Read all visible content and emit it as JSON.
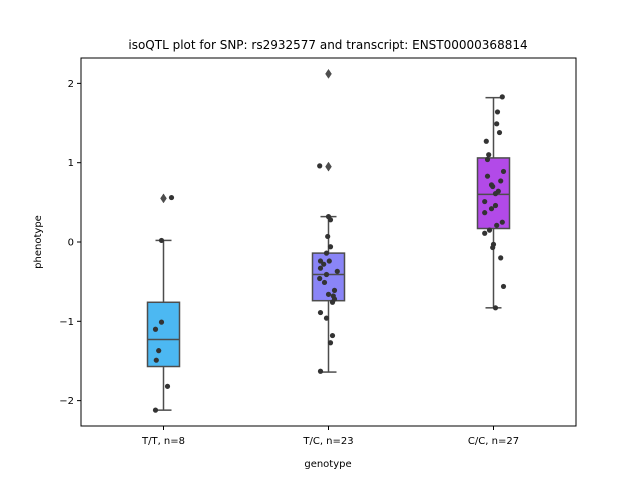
{
  "chart_data": {
    "type": "box",
    "title": "isoQTL plot for SNP: rs2932577 and transcript: ENST00000368814",
    "xlabel": "genotype",
    "ylabel": "phenotype",
    "ylim": [
      -2.32,
      2.32
    ],
    "yticks": [
      2,
      1,
      0,
      -1,
      -2
    ],
    "ytick_labels": [
      "2",
      "1",
      "0",
      "−1",
      "−2"
    ],
    "categories": [
      "T/T, n=8",
      "T/C, n=23",
      "C/C, n=27"
    ],
    "colors": [
      "#4cb8f2",
      "#8a85f7",
      "#b24ae8"
    ],
    "boxes": [
      {
        "q1": -1.57,
        "median": -1.23,
        "q3": -0.76,
        "whisker_low": -2.12,
        "whisker_high": 0.02,
        "outliers": [
          0.55
        ]
      },
      {
        "q1": -0.74,
        "median": -0.41,
        "q3": -0.14,
        "whisker_low": -1.64,
        "whisker_high": 0.32,
        "outliers": [
          0.95,
          2.12
        ]
      },
      {
        "q1": 0.17,
        "median": 0.6,
        "q3": 1.06,
        "whisker_low": -0.83,
        "whisker_high": 1.82,
        "outliers": []
      }
    ],
    "points": [
      [
        [
          -0.05,
          0.02
        ],
        [
          0.2,
          0.56
        ],
        [
          -0.2,
          -1.1
        ],
        [
          -0.05,
          -1.01
        ],
        [
          -0.12,
          -1.37
        ],
        [
          -0.18,
          -1.49
        ],
        [
          0.1,
          -1.82
        ],
        [
          -0.2,
          -2.12
        ]
      ],
      [
        [
          -0.22,
          0.96
        ],
        [
          0.0,
          0.32
        ],
        [
          0.05,
          0.28
        ],
        [
          -0.02,
          0.07
        ],
        [
          0.05,
          -0.06
        ],
        [
          -0.05,
          -0.14
        ],
        [
          -0.2,
          -0.24
        ],
        [
          0.02,
          -0.24
        ],
        [
          -0.12,
          -0.28
        ],
        [
          -0.2,
          -0.33
        ],
        [
          0.22,
          -0.37
        ],
        [
          -0.05,
          -0.41
        ],
        [
          -0.22,
          -0.46
        ],
        [
          -0.1,
          -0.51
        ],
        [
          0.15,
          -0.61
        ],
        [
          0.0,
          -0.66
        ],
        [
          0.12,
          -0.68
        ],
        [
          0.15,
          -0.72
        ],
        [
          0.1,
          -0.76
        ],
        [
          -0.2,
          -0.89
        ],
        [
          -0.05,
          -0.96
        ],
        [
          0.1,
          -1.18
        ],
        [
          0.05,
          -1.27
        ],
        [
          -0.2,
          -1.63
        ]
      ],
      [
        [
          0.22,
          1.83
        ],
        [
          0.1,
          1.64
        ],
        [
          0.08,
          1.49
        ],
        [
          0.15,
          1.38
        ],
        [
          -0.18,
          1.27
        ],
        [
          -0.12,
          1.1
        ],
        [
          -0.15,
          1.04
        ],
        [
          0.25,
          0.89
        ],
        [
          -0.15,
          0.83
        ],
        [
          0.18,
          0.77
        ],
        [
          -0.05,
          0.72
        ],
        [
          -0.02,
          0.7
        ],
        [
          0.12,
          0.64
        ],
        [
          0.05,
          0.61
        ],
        [
          -0.22,
          0.51
        ],
        [
          0.05,
          0.46
        ],
        [
          -0.05,
          0.42
        ],
        [
          -0.22,
          0.37
        ],
        [
          0.22,
          0.25
        ],
        [
          0.08,
          0.21
        ],
        [
          -0.1,
          0.15
        ],
        [
          -0.22,
          0.11
        ],
        [
          0.0,
          -0.03
        ],
        [
          -0.02,
          -0.07
        ],
        [
          0.18,
          -0.2
        ],
        [
          0.25,
          -0.56
        ],
        [
          0.05,
          -0.83
        ]
      ]
    ]
  }
}
